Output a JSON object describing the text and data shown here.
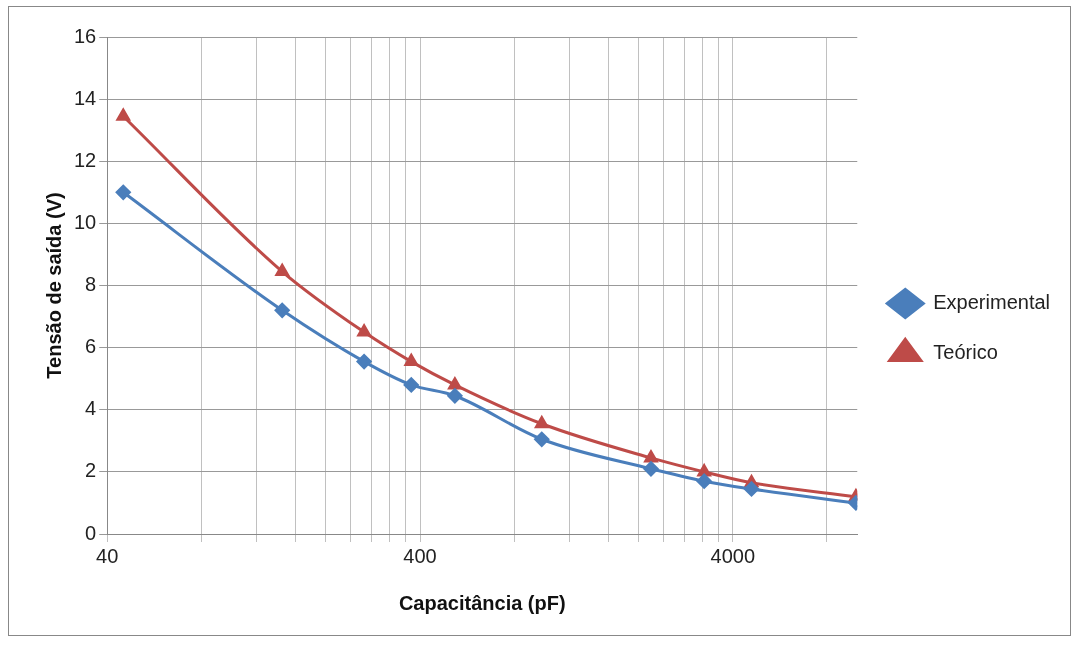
{
  "chart_data": {
    "type": "line",
    "xlabel": "Capacitância (pF)",
    "ylabel": "Tensão de saída (V)",
    "log": "x",
    "xlim": [
      40,
      10000
    ],
    "xticks": [
      40,
      {
        "value": 80,
        "label": null
      },
      {
        "value": 120,
        "label": null
      },
      {
        "value": 160,
        "label": null
      },
      {
        "value": 200,
        "label": null
      },
      {
        "value": 240,
        "label": null
      },
      {
        "value": 280,
        "label": null
      },
      {
        "value": 320,
        "label": null
      },
      {
        "value": 360,
        "label": null
      },
      400,
      {
        "value": 800,
        "label": null
      },
      {
        "value": 1200,
        "label": null
      },
      {
        "value": 1600,
        "label": null
      },
      {
        "value": 2000,
        "label": null
      },
      {
        "value": 2400,
        "label": null
      },
      {
        "value": 2800,
        "label": null
      },
      {
        "value": 3200,
        "label": null
      },
      {
        "value": 3600,
        "label": null
      },
      4000,
      {
        "value": 8000,
        "label": null
      }
    ],
    "ylim": [
      0,
      16
    ],
    "yticks": [
      0,
      2,
      4,
      6,
      8,
      10,
      12,
      14,
      16
    ],
    "grid": true,
    "legend": "right",
    "line_style": "solid",
    "series": [
      {
        "name": "Experimental",
        "color": "#4a7ebb",
        "marker": "diamond",
        "x": [
          45,
          145,
          265,
          375,
          517,
          980,
          2190,
          3240,
          4590,
          9900
        ],
        "values": [
          11,
          7.2,
          5.55,
          4.8,
          4.45,
          3.05,
          2.1,
          1.7,
          1.45,
          1.0
        ]
      },
      {
        "name": "Teórico",
        "color": "#be4b48",
        "marker": "triangle",
        "x": [
          45,
          145,
          265,
          375,
          517,
          980,
          2190,
          3240,
          4590,
          9900
        ],
        "values": [
          13.45,
          8.45,
          6.5,
          5.55,
          4.8,
          3.55,
          2.45,
          2.0,
          1.65,
          1.2
        ]
      }
    ]
  }
}
